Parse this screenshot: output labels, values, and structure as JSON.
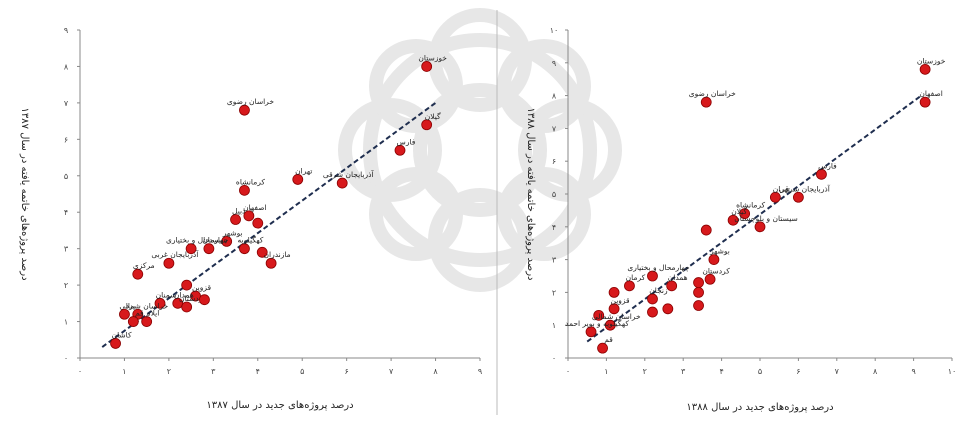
{
  "chart_data": [
    {
      "type": "scatter",
      "title": "",
      "xlabel": "درصد پروژه‌های جدید در سال ۱۳۸۷",
      "ylabel": "درصد پروژه‌های خاتمه یافته در سال ۱۳۸۷",
      "xlim": [
        0,
        9
      ],
      "ylim": [
        0,
        9
      ],
      "xticks": [
        "۰",
        "۱",
        "۲",
        "۳",
        "۴",
        "۵",
        "۶",
        "۷",
        "۸",
        "۹"
      ],
      "yticks": [
        "۰",
        "۱",
        "۲",
        "۳",
        "۴",
        "۵",
        "۶",
        "۷",
        "۸",
        "۹"
      ],
      "trendline": {
        "x": [
          0.5,
          8.0
        ],
        "y": [
          0.3,
          7.0
        ],
        "style": "dashed"
      },
      "points": [
        {
          "x": 7.8,
          "y": 8.0,
          "label": "خوزستان"
        },
        {
          "x": 3.7,
          "y": 6.8,
          "label": "خراسان رضوی"
        },
        {
          "x": 7.8,
          "y": 6.4,
          "label": "گیلان"
        },
        {
          "x": 7.2,
          "y": 5.7,
          "label": "فارس"
        },
        {
          "x": 4.9,
          "y": 4.9,
          "label": "تهران"
        },
        {
          "x": 5.9,
          "y": 4.8,
          "label": "آذربایجان شرقی"
        },
        {
          "x": 3.7,
          "y": 4.6,
          "label": "کرمانشاه"
        },
        {
          "x": 3.5,
          "y": 3.8,
          "label": "اردبیل"
        },
        {
          "x": 3.8,
          "y": 3.9,
          "label": "اصفهان"
        },
        {
          "x": 4.0,
          "y": 3.7,
          "label": ""
        },
        {
          "x": 3.3,
          "y": 3.2,
          "label": "بوشهر"
        },
        {
          "x": 3.7,
          "y": 3.0,
          "label": "کهگیلویه"
        },
        {
          "x": 4.1,
          "y": 2.9,
          "label": ""
        },
        {
          "x": 4.3,
          "y": 2.6,
          "label": "مازندران"
        },
        {
          "x": 2.9,
          "y": 3.0,
          "label": "سیستان"
        },
        {
          "x": 2.5,
          "y": 3.0,
          "label": "چهارمحال و بختیاری"
        },
        {
          "x": 2.0,
          "y": 2.6,
          "label": "آذربایجان غربی"
        },
        {
          "x": 1.3,
          "y": 2.3,
          "label": "مرکزی"
        },
        {
          "x": 2.4,
          "y": 2.0,
          "label": ""
        },
        {
          "x": 2.6,
          "y": 1.7,
          "label": "قزوین"
        },
        {
          "x": 2.2,
          "y": 1.5,
          "label": "همدان"
        },
        {
          "x": 1.8,
          "y": 1.5,
          "label": "سمنان"
        },
        {
          "x": 2.4,
          "y": 1.4,
          "label": "کردستان"
        },
        {
          "x": 2.8,
          "y": 1.6,
          "label": ""
        },
        {
          "x": 1.3,
          "y": 1.2,
          "label": "خراسان شمالی"
        },
        {
          "x": 1.0,
          "y": 1.2,
          "label": "یزد"
        },
        {
          "x": 1.2,
          "y": 1.0,
          "label": "قم"
        },
        {
          "x": 1.5,
          "y": 1.0,
          "label": "ایلام"
        },
        {
          "x": 0.8,
          "y": 0.4,
          "label": "کاشان"
        }
      ]
    },
    {
      "type": "scatter",
      "title": "",
      "xlabel": "درصد پروژه‌های جدید در سال ۱۳۸۸",
      "ylabel": "درصد پروژه‌های خاتمه یافته در سال ۱۳۸۸",
      "xlim": [
        0,
        10
      ],
      "ylim": [
        0,
        10
      ],
      "xticks": [
        "۰",
        "۱",
        "۲",
        "۳",
        "۴",
        "۵",
        "۶",
        "۷",
        "۸",
        "۹",
        "۱۰"
      ],
      "yticks": [
        "۰",
        "۱",
        "۲",
        "۳",
        "۴",
        "۵",
        "۶",
        "۷",
        "۸",
        "۹",
        "۱۰"
      ],
      "trendline": {
        "x": [
          0.5,
          9.2
        ],
        "y": [
          0.5,
          8.0
        ],
        "style": "dashed"
      },
      "points": [
        {
          "x": 9.3,
          "y": 8.8,
          "label": "خوزستان"
        },
        {
          "x": 3.6,
          "y": 7.8,
          "label": "خراسان رضوی"
        },
        {
          "x": 9.3,
          "y": 7.8,
          "label": "اصفهان"
        },
        {
          "x": 6.6,
          "y": 5.6,
          "label": "فارس"
        },
        {
          "x": 5.4,
          "y": 4.9,
          "label": "تهران"
        },
        {
          "x": 6.0,
          "y": 4.9,
          "label": "آذربایجان شرقی"
        },
        {
          "x": 4.6,
          "y": 4.4,
          "label": "کرمانشاه"
        },
        {
          "x": 4.3,
          "y": 4.2,
          "label": "گیلان"
        },
        {
          "x": 5.0,
          "y": 4.0,
          "label": "سیستان و بلوچستان"
        },
        {
          "x": 3.6,
          "y": 3.9,
          "label": ""
        },
        {
          "x": 3.8,
          "y": 3.0,
          "label": "بوشهر"
        },
        {
          "x": 2.2,
          "y": 2.5,
          "label": "چهارمحال و بختیاری"
        },
        {
          "x": 3.7,
          "y": 2.4,
          "label": "کردستان"
        },
        {
          "x": 3.4,
          "y": 2.3,
          "label": ""
        },
        {
          "x": 2.7,
          "y": 2.2,
          "label": "همدان"
        },
        {
          "x": 3.4,
          "y": 2.0,
          "label": ""
        },
        {
          "x": 1.6,
          "y": 2.2,
          "label": "کرمان"
        },
        {
          "x": 1.2,
          "y": 2.0,
          "label": ""
        },
        {
          "x": 2.2,
          "y": 1.8,
          "label": "زنجان"
        },
        {
          "x": 3.4,
          "y": 1.6,
          "label": ""
        },
        {
          "x": 2.6,
          "y": 1.5,
          "label": ""
        },
        {
          "x": 1.2,
          "y": 1.5,
          "label": "قزوین"
        },
        {
          "x": 2.2,
          "y": 1.4,
          "label": ""
        },
        {
          "x": 0.8,
          "y": 1.3,
          "label": ""
        },
        {
          "x": 1.1,
          "y": 1.0,
          "label": "خراسان شمالی"
        },
        {
          "x": 0.6,
          "y": 0.8,
          "label": "کهگیلویه و بویر احمد"
        },
        {
          "x": 0.9,
          "y": 0.3,
          "label": "قم"
        }
      ]
    }
  ]
}
